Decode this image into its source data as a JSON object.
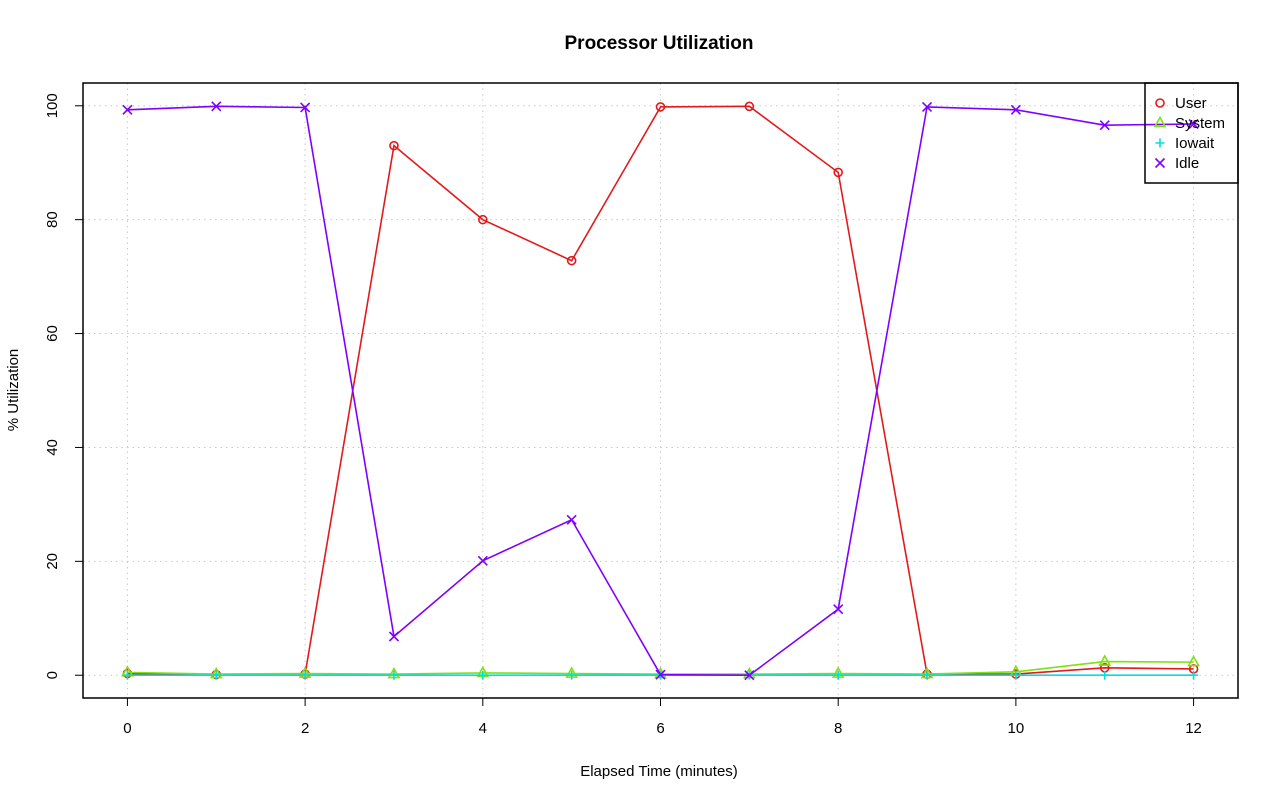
{
  "chart_data": {
    "type": "line",
    "title": "Processor Utilization",
    "xlabel": "Elapsed Time (minutes)",
    "ylabel": "% Utilization",
    "x": [
      0,
      1,
      2,
      3,
      4,
      5,
      6,
      7,
      8,
      9,
      10,
      11,
      12
    ],
    "xlim": [
      -0.5,
      12.5
    ],
    "ylim": [
      -4,
      104
    ],
    "x_ticks": [
      "0",
      "2",
      "4",
      "6",
      "8",
      "10",
      "12"
    ],
    "y_ticks": [
      "0",
      "20",
      "40",
      "60",
      "80",
      "100"
    ],
    "grid": true,
    "legend_position": "top-right",
    "series": [
      {
        "name": "User",
        "color": "#e31a1c",
        "marker": "circle",
        "values": [
          0.3,
          0.1,
          0.2,
          93,
          80,
          72.8,
          99.8,
          99.9,
          88.3,
          0.2,
          0.2,
          1.3,
          1.1
        ]
      },
      {
        "name": "System",
        "color": "#80e010",
        "marker": "triangle",
        "values": [
          0.5,
          0.2,
          0.3,
          0.2,
          0.4,
          0.3,
          0.2,
          0.2,
          0.3,
          0.2,
          0.6,
          2.4,
          2.3
        ]
      },
      {
        "name": "Iowait",
        "color": "#00e0e0",
        "marker": "plus",
        "values": [
          0.0,
          0.0,
          0.0,
          0.0,
          0.0,
          0.0,
          0.0,
          0.0,
          0.0,
          0.0,
          0.0,
          0.0,
          0.0
        ]
      },
      {
        "name": "Idle",
        "color": "#8000ff",
        "marker": "cross",
        "values": [
          99.3,
          99.9,
          99.7,
          6.8,
          20.1,
          27.3,
          0.1,
          0.0,
          11.6,
          99.8,
          99.3,
          96.6,
          96.8
        ]
      }
    ]
  }
}
